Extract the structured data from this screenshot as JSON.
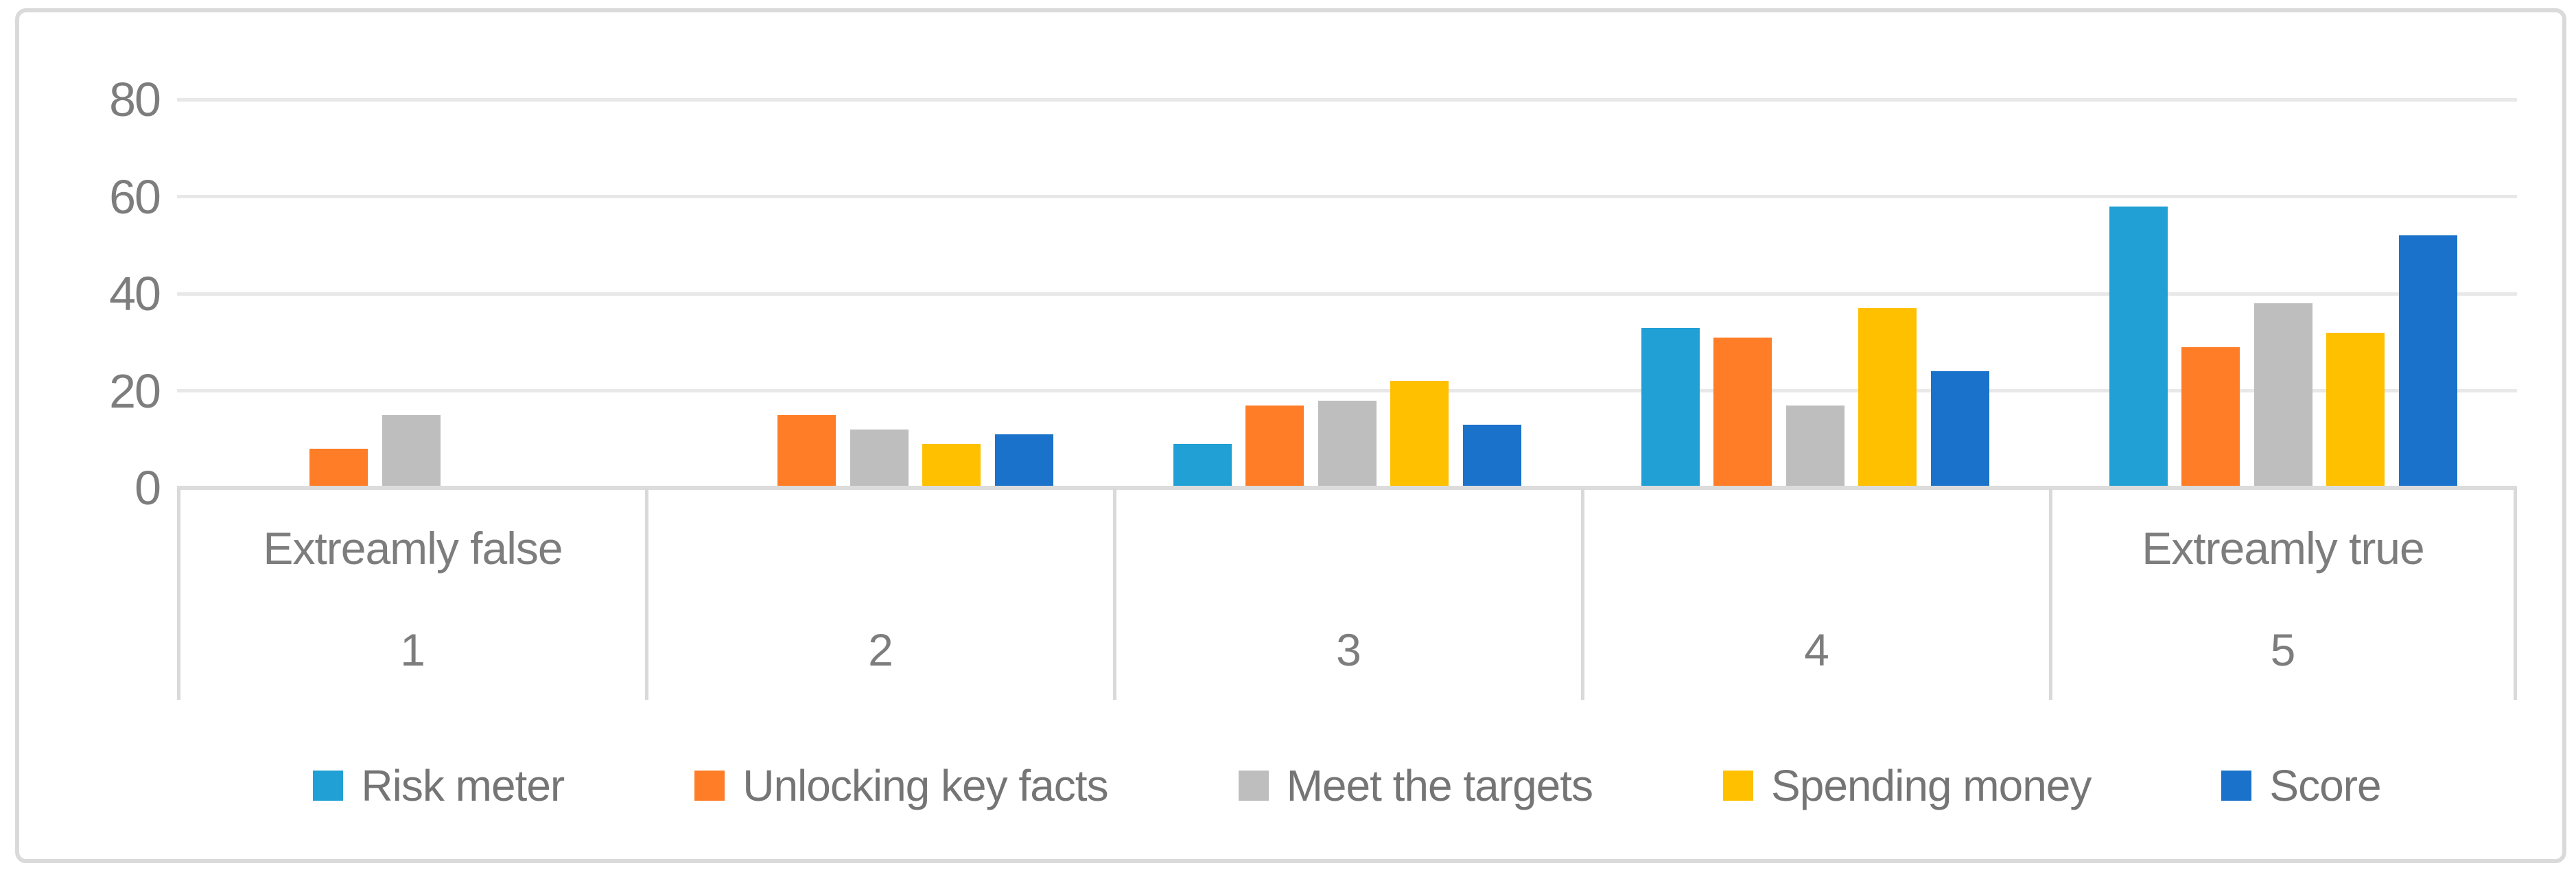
{
  "chart": {
    "frame_border_color": "#dadada",
    "gridline_color": "#e8e8e8",
    "axis_line_color": "#dcdcdc",
    "divider_color": "#d9d9d9",
    "text_color": "#7d7d7d"
  },
  "chart_data": {
    "type": "bar",
    "title": "",
    "xlabel": "",
    "ylabel": "",
    "categories": [
      "1",
      "2",
      "3",
      "4",
      "5"
    ],
    "category_sublabels": [
      "Extreamly false",
      "",
      "",
      "",
      "Extreamly true"
    ],
    "yticks": [
      0,
      20,
      40,
      60,
      80
    ],
    "ylim": [
      0,
      80
    ],
    "grid": true,
    "legend_position": "bottom",
    "series": [
      {
        "name": "Risk meter",
        "color": "#20a0d5",
        "values": [
          0,
          0,
          9,
          33,
          58
        ]
      },
      {
        "name": "Unlocking key facts",
        "color": "#ff7d27",
        "values": [
          8,
          15,
          17,
          31,
          29
        ]
      },
      {
        "name": "Meet the targets",
        "color": "#bebebe",
        "values": [
          15,
          12,
          18,
          17,
          38
        ]
      },
      {
        "name": "Spending money",
        "color": "#ffc000",
        "values": [
          0,
          9,
          22,
          37,
          32
        ]
      },
      {
        "name": "Score",
        "color": "#1b72ca",
        "values": [
          0,
          11,
          13,
          24,
          52
        ]
      }
    ]
  }
}
